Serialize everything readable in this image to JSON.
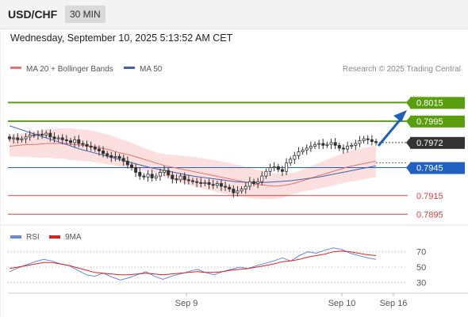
{
  "header": {
    "symbol": "USD/CHF",
    "timeframe": "30 MIN",
    "datetime": "Wednesday, September 10, 2025 5:13:52 AM CET"
  },
  "credit": "Research © 2025 Trading Central",
  "colors": {
    "resistance": "#5a9e0f",
    "support": "#2060c0",
    "last": "#333333",
    "minor": "#d94040",
    "ma20": "#e87070",
    "ma50": "#4060b0",
    "band": "#fbd9d9",
    "up_candle": "#333333",
    "down_candle": "#333333",
    "arrow": "#2060b8",
    "rsi": "#6688dd",
    "rsi_ma": "#e02020"
  },
  "chart_data": [
    {
      "type": "candlestick",
      "legend": [
        "MA 20 + Bollinger Bands",
        "MA 50"
      ],
      "ylim": [
        0.7885,
        0.804
      ],
      "x_labels": [
        "Sep 9",
        "Sep 10",
        "Sep 16"
      ],
      "levels": [
        {
          "label": "0.8015",
          "value": 0.8015,
          "kind": "resistance"
        },
        {
          "label": "0.7995",
          "value": 0.7995,
          "kind": "resistance"
        },
        {
          "label": "0.7972",
          "value": 0.7972,
          "kind": "last"
        },
        {
          "label": "0.7945",
          "value": 0.7945,
          "kind": "support"
        },
        {
          "label": "0.7915",
          "value": 0.7915,
          "kind": "minor"
        },
        {
          "label": "0.7895",
          "value": 0.7895,
          "kind": "minor"
        }
      ],
      "close": [
        0.7976,
        0.7977,
        0.7975,
        0.7976,
        0.7978,
        0.798,
        0.798,
        0.7981,
        0.798,
        0.7982,
        0.7978,
        0.7976,
        0.7977,
        0.7975,
        0.7974,
        0.7972,
        0.7975,
        0.7971,
        0.797,
        0.7968,
        0.7967,
        0.7965,
        0.7963,
        0.796,
        0.7958,
        0.7956,
        0.7957,
        0.7955,
        0.7952,
        0.7948,
        0.7945,
        0.794,
        0.7936,
        0.7935,
        0.7938,
        0.7934,
        0.7936,
        0.794,
        0.7942,
        0.7937,
        0.7933,
        0.7932,
        0.7936,
        0.7932,
        0.7931,
        0.793,
        0.7929,
        0.7928,
        0.7929,
        0.7927,
        0.7926,
        0.7928,
        0.7925,
        0.7924,
        0.7922,
        0.7918,
        0.792,
        0.7922,
        0.7925,
        0.793,
        0.7928,
        0.793,
        0.7936,
        0.7941,
        0.7945,
        0.7946,
        0.7943,
        0.7941,
        0.795,
        0.7954,
        0.7958,
        0.7962,
        0.7964,
        0.7966,
        0.7968,
        0.797,
        0.7971,
        0.7969,
        0.797,
        0.7972,
        0.7969,
        0.7966,
        0.7965,
        0.7968,
        0.7969,
        0.7971,
        0.7974,
        0.7976,
        0.7975,
        0.7973,
        0.7972
      ],
      "ma20": [
        0.7968,
        0.7969,
        0.797,
        0.797,
        0.7971,
        0.7971,
        0.7971,
        0.797,
        0.7969,
        0.7968,
        0.7966,
        0.7964,
        0.7961,
        0.7959,
        0.7956,
        0.7953,
        0.795,
        0.7947,
        0.7945,
        0.7943,
        0.7941,
        0.7939,
        0.7937,
        0.7935,
        0.7933,
        0.7931,
        0.7929,
        0.7927,
        0.7926,
        0.7925,
        0.7926,
        0.7928,
        0.7931,
        0.7934,
        0.7937,
        0.794,
        0.7943,
        0.7946,
        0.7948,
        0.795,
        0.7952
      ],
      "ma50": [
        0.799,
        0.7985,
        0.798,
        0.7975,
        0.797,
        0.7965,
        0.7961,
        0.7957,
        0.7953,
        0.7949,
        0.7945,
        0.7942,
        0.7939,
        0.7936,
        0.7934,
        0.7932,
        0.793,
        0.7929,
        0.7929,
        0.793,
        0.7931,
        0.7933,
        0.7935,
        0.7938,
        0.7941,
        0.7944,
        0.7947
      ]
    },
    {
      "type": "line",
      "legend": [
        "RSI",
        "9MA"
      ],
      "ylim": [
        20,
        80
      ],
      "y_ticks": [
        70,
        50,
        30
      ],
      "rsi": [
        44,
        49,
        53,
        57,
        60,
        58,
        54,
        52,
        46,
        40,
        38,
        42,
        37,
        33,
        36,
        40,
        44,
        38,
        34,
        38,
        41,
        44,
        47,
        43,
        40,
        44,
        47,
        50,
        48,
        52,
        55,
        58,
        62,
        58,
        65,
        70,
        68,
        72,
        75,
        73,
        68,
        65,
        62,
        60
      ],
      "ma9": [
        48,
        50,
        52,
        54,
        56,
        56,
        54,
        52,
        49,
        46,
        43,
        42,
        41,
        40,
        40,
        41,
        42,
        41,
        40,
        41,
        42,
        43,
        44,
        43,
        43,
        44,
        46,
        47,
        48,
        50,
        52,
        54,
        57,
        58,
        60,
        63,
        65,
        67,
        70,
        71,
        70,
        68,
        66,
        65
      ]
    }
  ]
}
